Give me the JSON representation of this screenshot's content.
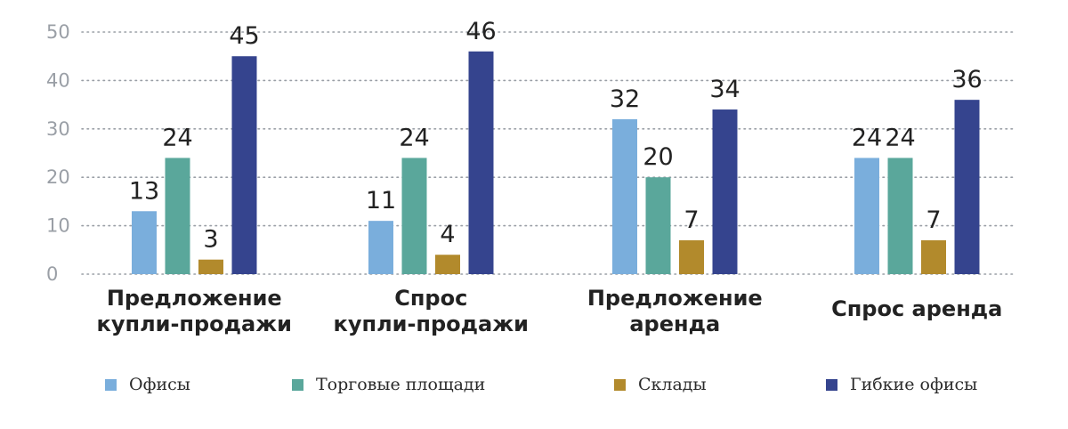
{
  "chart_data": {
    "type": "bar",
    "categories": [
      [
        "Предложение",
        "купли-продажи"
      ],
      [
        "Спрос",
        "купли-продажи"
      ],
      [
        "Предложение",
        "аренда"
      ],
      [
        "Спрос аренда"
      ]
    ],
    "series": [
      {
        "name": "Офисы",
        "color": "#7aaedc",
        "values": [
          13,
          11,
          32,
          24
        ]
      },
      {
        "name": "Торговые площади",
        "color": "#5aa79b",
        "values": [
          24,
          24,
          20,
          24
        ]
      },
      {
        "name": "Склады",
        "color": "#b28a2c",
        "values": [
          3,
          4,
          7,
          7
        ]
      },
      {
        "name": "Гибкие офисы",
        "color": "#35448e",
        "values": [
          45,
          46,
          34,
          36
        ]
      }
    ],
    "data_labels": [
      [
        "13",
        "11",
        "32",
        "24"
      ],
      [
        "24",
        "24",
        "20",
        "24"
      ],
      [
        "3",
        "4",
        "7",
        "7"
      ],
      [
        "45",
        "46",
        "34",
        "36"
      ]
    ],
    "yticks": [
      0,
      10,
      20,
      30,
      40,
      50
    ],
    "ylim": [
      0,
      50
    ],
    "grid": "horizontal dotted",
    "legend": "bottom",
    "title": "",
    "xlabel": "",
    "ylabel": ""
  }
}
